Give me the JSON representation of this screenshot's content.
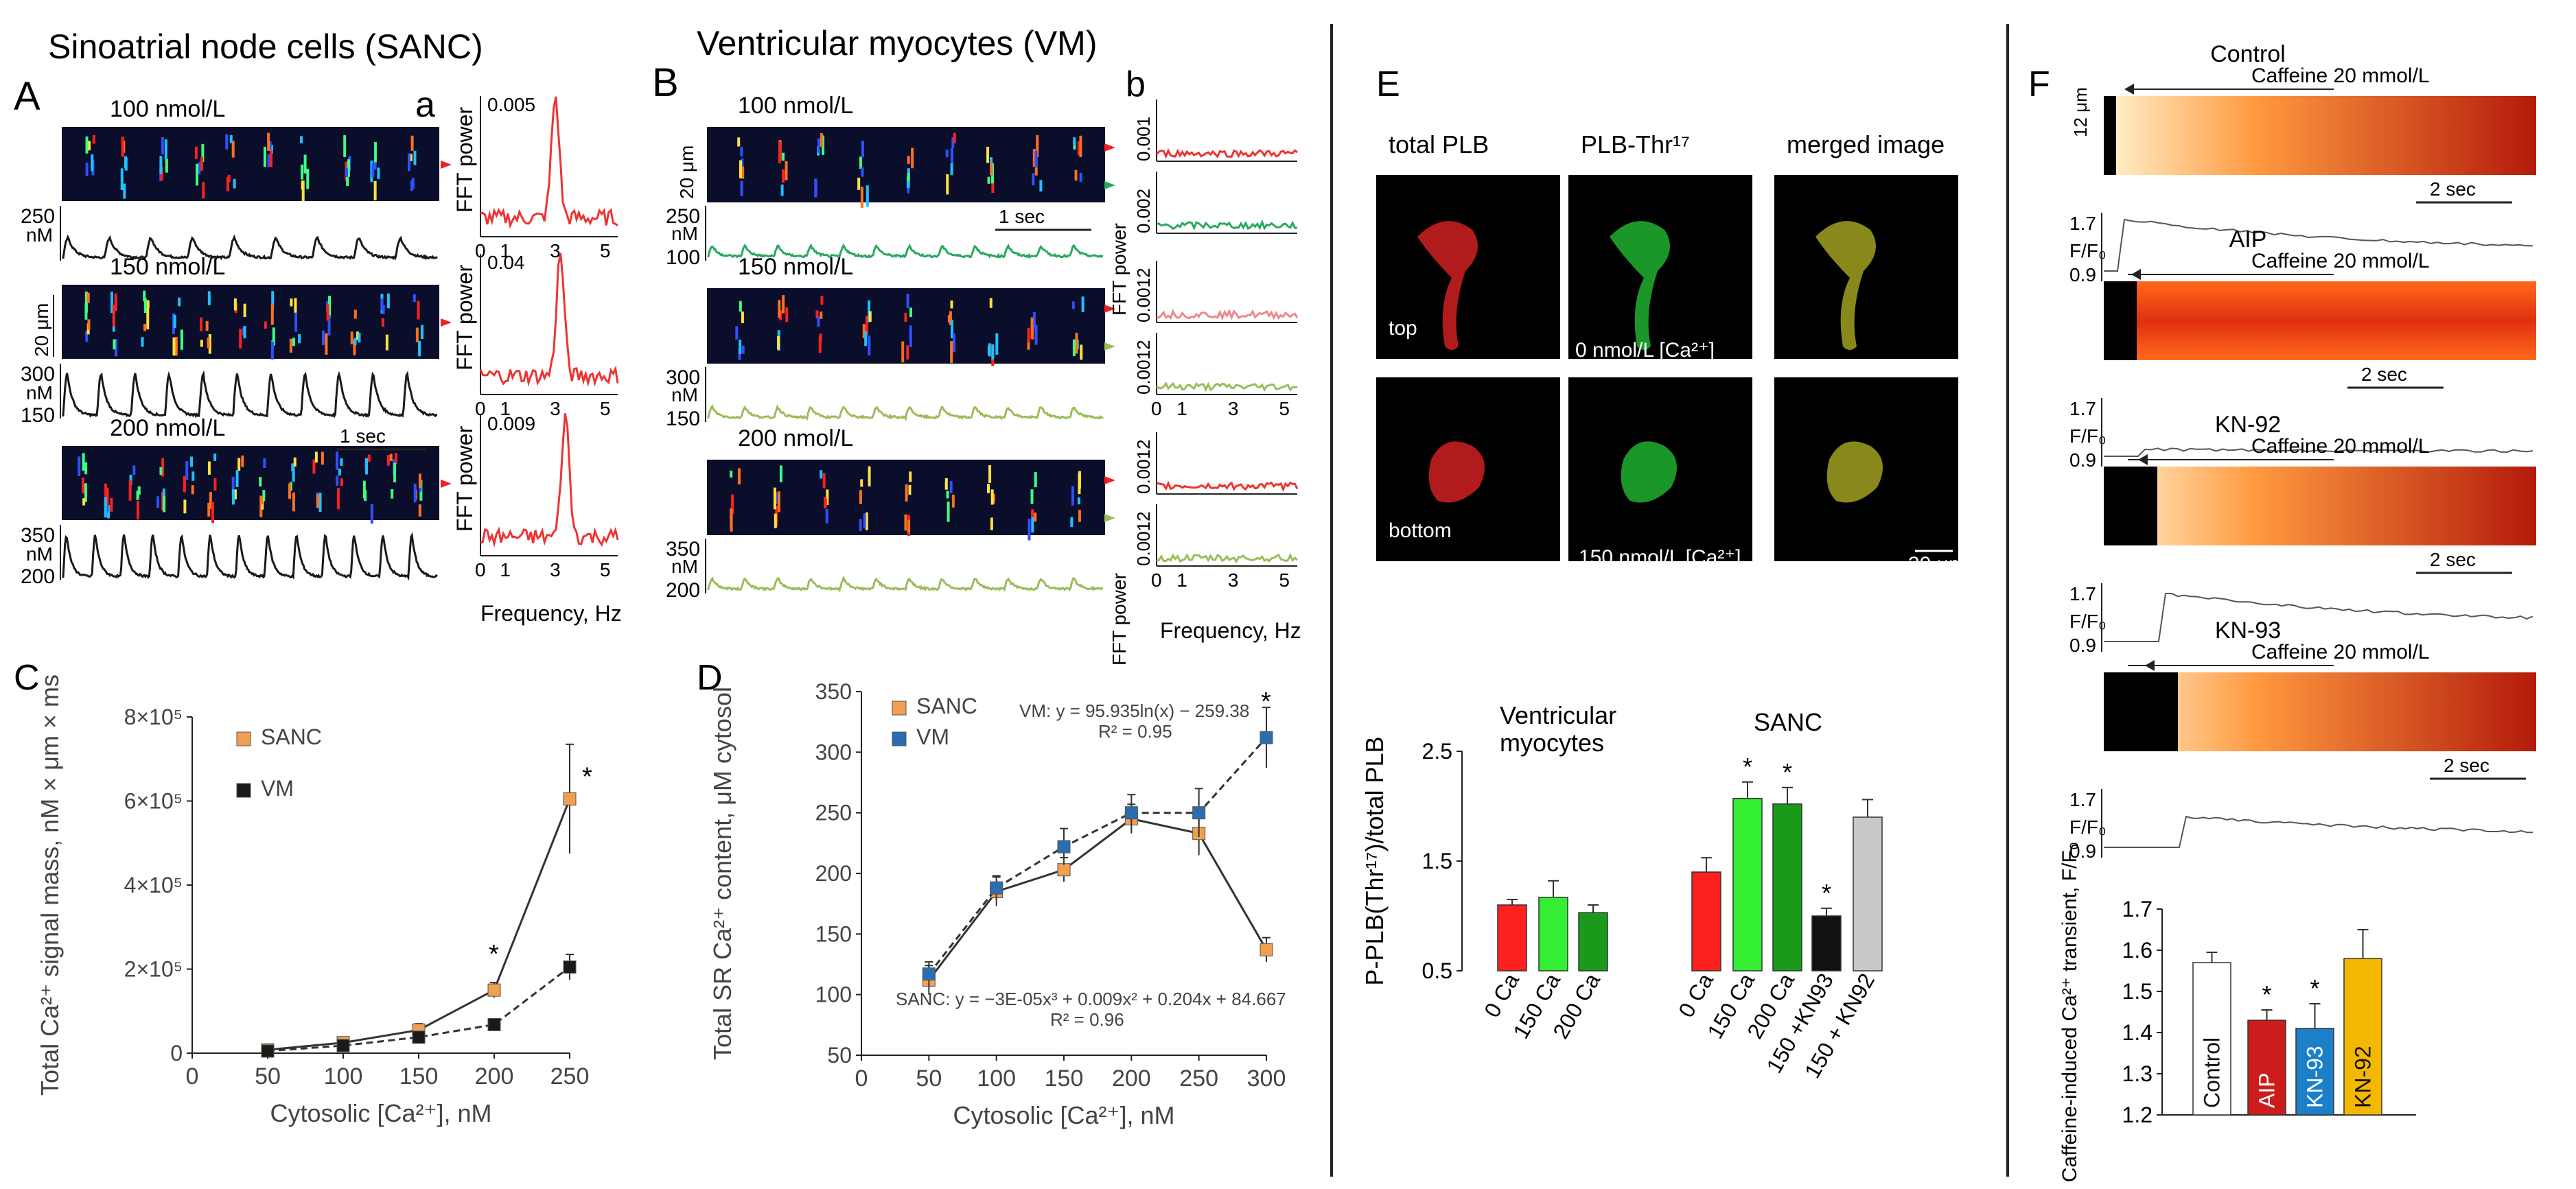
{
  "colors": {
    "sanc": "#f0a050",
    "vm": "#1a1a1a",
    "vm_d": "#2a6db0",
    "red": "#e63030",
    "green": "#2aa860",
    "lightgreen": "#9cbc5a"
  },
  "panelA": {
    "title": "Sinoatrial node cells (SANC)",
    "letter": "A",
    "sub_letter": "a",
    "rows": [
      {
        "conc": "100 nmol/L",
        "fft_max": "0.005",
        "y_hi": "250",
        "y_unit": "nM",
        "y_lo": ""
      },
      {
        "conc": "150 nmol/L",
        "fft_max": "0.04",
        "y_hi": "300",
        "y_unit": "nM",
        "y_lo": "150"
      },
      {
        "conc": "200 nmol/L",
        "fft_max": "0.009",
        "y_hi": "350",
        "y_unit": "nM",
        "y_lo": "200"
      }
    ],
    "scale_um": "20 μm",
    "scale_sec": "1 sec",
    "fft_ylabel": "FFT power",
    "fft_xlabel": "Frequency,  Hz",
    "fft_ticks": [
      "0",
      "1",
      "3",
      "5"
    ],
    "fft_ticks2": [
      "0",
      "1",
      "3",
      "5"
    ]
  },
  "panelB": {
    "title": "Ventricular myocytes (VM)",
    "letter": "B",
    "sub_letter": "b",
    "rows": [
      {
        "conc": "100 nmol/L",
        "fft_top": "0.001",
        "fft_bot": "0.002",
        "y_hi": "250",
        "y_unit": "nM",
        "y_lo": "100"
      },
      {
        "conc": "150 nmol/L",
        "fft_top": "0.0012",
        "fft_bot": "0.0012",
        "y_hi": "300",
        "y_unit": "nM",
        "y_lo": "150"
      },
      {
        "conc": "200 nmol/L",
        "fft_top": "0.0012",
        "fft_bot": "0.0012",
        "y_hi": "350",
        "y_unit": "nM",
        "y_lo": "200"
      }
    ],
    "scale_um": "20 μm",
    "scale_sec": "1 sec",
    "fft_ylabel": "FFT power",
    "fft_xlabel": "Frequency,  Hz",
    "fft_ticks": [
      "0",
      "1",
      "3",
      "5"
    ]
  },
  "panelE": {
    "letter": "E",
    "col_labels": [
      "total PLB",
      "PLB-Thr¹⁷",
      "merged image"
    ],
    "row_labels": [
      "top",
      "bottom"
    ],
    "conc_top": "0 nmol/L [Ca²⁺]",
    "conc_bottom": "150 nmol/L [Ca²⁺]",
    "scale": "30 μm"
  },
  "panelF": {
    "letter": "F",
    "traces": [
      {
        "title": "Control",
        "caffeine": "Caffeine 20 mmol/L"
      },
      {
        "title": "AIP",
        "caffeine": "Caffeine 20 mmol/L"
      },
      {
        "title": "KN-92",
        "caffeine": "Caffeine 20 mmol/L"
      },
      {
        "title": "KN-93",
        "caffeine": "Caffeine 20 mmol/L"
      }
    ],
    "um_label": "12 μm",
    "y_hi": "1.7",
    "y_lo": "0.9",
    "f_label": "F/F₀",
    "scale_sec": "2 sec"
  },
  "chart_data": [
    {
      "id": "C",
      "type": "line",
      "letter": "C",
      "ylabel": "Total Ca²⁺ signal mass, nM × μm × ms",
      "xlabel": "Cytosolic [Ca²⁺], nM",
      "xlim": [
        0,
        250
      ],
      "ylim": [
        0,
        800000
      ],
      "x_ticks": [
        "0",
        "50",
        "100",
        "150",
        "200",
        "250"
      ],
      "y_ticks": [
        "0",
        "2×10⁵",
        "4×10⁵",
        "6×10⁵",
        "8×10⁵"
      ],
      "series": [
        {
          "name": "SANC",
          "color": "#f0a050",
          "x": [
            50,
            100,
            150,
            200,
            250
          ],
          "y": [
            8000,
            25000,
            55000,
            150000,
            605000
          ],
          "err": [
            10000,
            12000,
            15000,
            18000,
            130000
          ]
        },
        {
          "name": "VM",
          "color": "#1a1a1a",
          "x": [
            50,
            100,
            150,
            200,
            250
          ],
          "y": [
            5000,
            18000,
            38000,
            68000,
            205000
          ],
          "err": [
            8000,
            10000,
            12000,
            12000,
            30000
          ]
        }
      ],
      "annotations": [
        "*",
        "*"
      ]
    },
    {
      "id": "D",
      "type": "line",
      "letter": "D",
      "ylabel": "Total SR Ca²⁺ content, μM cytosol",
      "xlabel": "Cytosolic [Ca²⁺], nM",
      "xlim": [
        0,
        300
      ],
      "ylim": [
        50,
        350
      ],
      "x_ticks": [
        "0",
        "50",
        "100",
        "150",
        "200",
        "250",
        "300"
      ],
      "y_ticks": [
        "50",
        "100",
        "150",
        "200",
        "250",
        "300",
        "350"
      ],
      "series": [
        {
          "name": "SANC",
          "color": "#f0a050",
          "x": [
            50,
            100,
            150,
            200,
            250,
            300
          ],
          "y": [
            112,
            185,
            203,
            245,
            233,
            137
          ],
          "err": [
            12,
            12,
            10,
            12,
            18,
            10
          ]
        },
        {
          "name": "VM",
          "color": "#2a6db0",
          "x": [
            50,
            100,
            150,
            200,
            250,
            300
          ],
          "y": [
            117,
            188,
            222,
            250,
            250,
            312
          ],
          "err": [
            10,
            10,
            15,
            15,
            20,
            25
          ]
        }
      ],
      "eq_vm": "VM: y = 95.935ln(x) − 259.38",
      "r2_vm": "R² = 0.95",
      "eq_sanc": "SANC: y = −3E-05x³ + 0.009x² + 0.204x + 84.667",
      "r2_sanc": "R² = 0.96",
      "annotations": [
        "*"
      ]
    },
    {
      "id": "E_bar",
      "type": "bar",
      "ylabel": "P-PLB(Thr¹⁷)/total PLB",
      "ylim": [
        0.5,
        2.5
      ],
      "y_ticks": [
        "0.5",
        "1.5",
        "2.5"
      ],
      "group_labels": [
        "Ventricular myocytes",
        "SANC"
      ],
      "categories": [
        "0 Ca",
        "150 Ca",
        "200 Ca",
        "0 Ca",
        "150 Ca",
        "200 Ca",
        "150 +KN93",
        "150 + KN92"
      ],
      "values": [
        1.1,
        1.17,
        1.03,
        1.4,
        2.07,
        2.02,
        1.0,
        1.9
      ],
      "err": [
        0.05,
        0.15,
        0.07,
        0.13,
        0.15,
        0.15,
        0.07,
        0.16
      ],
      "colors": [
        "#ff2020",
        "#33ee33",
        "#1a9a1a",
        "#ff2020",
        "#33ee33",
        "#1a9a1a",
        "#111111",
        "#c8c8c8"
      ],
      "stars": [
        "",
        "",
        "",
        "",
        "*",
        "*",
        "*",
        ""
      ]
    },
    {
      "id": "F_bar",
      "type": "bar",
      "ylabel": "Caffeine-induced Ca²⁺ transient, F/F₀",
      "ylim": [
        1.2,
        1.7
      ],
      "y_ticks": [
        "1.2",
        "1.3",
        "1.4",
        "1.5",
        "1.6",
        "1.7"
      ],
      "categories": [
        "Control",
        "AIP",
        "KN-93",
        "KN-92"
      ],
      "values": [
        1.57,
        1.43,
        1.41,
        1.58
      ],
      "err": [
        0.025,
        0.025,
        0.06,
        0.07
      ],
      "colors": [
        "#ffffff",
        "#cc1c1c",
        "#1c80c8",
        "#f4b800"
      ],
      "stars": [
        "",
        "*",
        "*",
        ""
      ]
    }
  ]
}
